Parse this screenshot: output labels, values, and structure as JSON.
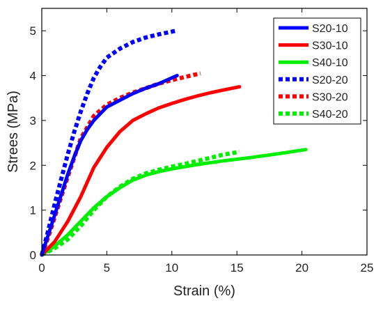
{
  "chart_data": {
    "type": "line",
    "title": "",
    "xlabel": "Strain (%)",
    "ylabel": "Strees (MPa)",
    "xlim": [
      0,
      25
    ],
    "ylim": [
      0,
      5.5
    ],
    "xticks": [
      0,
      5,
      10,
      15,
      20,
      25
    ],
    "yticks": [
      0,
      1,
      2,
      3,
      4,
      5
    ],
    "grid": false,
    "legend_position": "top-right",
    "series": [
      {
        "name": "S20-10",
        "color": "#0000ff",
        "style": "solid",
        "x": [
          0,
          0.5,
          1,
          1.5,
          2,
          2.5,
          3,
          3.5,
          4,
          5,
          6,
          7,
          8,
          9,
          10,
          10.4
        ],
        "y": [
          0,
          0.45,
          0.9,
          1.35,
          1.8,
          2.2,
          2.55,
          2.8,
          3.0,
          3.3,
          3.45,
          3.6,
          3.72,
          3.82,
          3.95,
          4.0
        ]
      },
      {
        "name": "S30-10",
        "color": "#ff0000",
        "style": "solid",
        "x": [
          0,
          1,
          2,
          3,
          4,
          5,
          6,
          7,
          8,
          9,
          10,
          11,
          12,
          13,
          14,
          15.2
        ],
        "y": [
          0,
          0.3,
          0.75,
          1.3,
          1.95,
          2.4,
          2.75,
          3.0,
          3.15,
          3.28,
          3.38,
          3.47,
          3.55,
          3.62,
          3.68,
          3.75
        ]
      },
      {
        "name": "S40-10",
        "color": "#00ee00",
        "style": "solid",
        "x": [
          0,
          1,
          2,
          3,
          4,
          5,
          6,
          7,
          8,
          9,
          10,
          12,
          14,
          16,
          18,
          20.3
        ],
        "y": [
          0,
          0.2,
          0.45,
          0.75,
          1.05,
          1.3,
          1.5,
          1.67,
          1.78,
          1.86,
          1.92,
          2.02,
          2.1,
          2.17,
          2.25,
          2.35
        ]
      },
      {
        "name": "S20-20",
        "color": "#0000ff",
        "style": "dotted",
        "x": [
          0,
          0.5,
          1,
          1.5,
          2,
          2.5,
          3,
          3.5,
          4,
          4.5,
          5,
          6,
          7,
          8,
          9,
          10.3
        ],
        "y": [
          0,
          0.55,
          1.15,
          1.7,
          2.25,
          2.75,
          3.2,
          3.6,
          3.95,
          4.2,
          4.4,
          4.6,
          4.75,
          4.85,
          4.92,
          5.0
        ]
      },
      {
        "name": "S30-20",
        "color": "#ff0000",
        "style": "dotted",
        "x": [
          0,
          0.5,
          1,
          1.5,
          2,
          3,
          4,
          5,
          6,
          7,
          8,
          9,
          10,
          11,
          12.2
        ],
        "y": [
          0,
          0.4,
          0.85,
          1.3,
          1.75,
          2.6,
          3.1,
          3.35,
          3.5,
          3.62,
          3.72,
          3.82,
          3.9,
          3.97,
          4.05
        ]
      },
      {
        "name": "S40-20",
        "color": "#00ee00",
        "style": "dotted",
        "x": [
          0,
          1,
          2,
          3,
          4,
          5,
          6,
          7,
          8,
          9,
          10,
          11,
          12,
          13,
          14,
          15.2
        ],
        "y": [
          0,
          0.15,
          0.35,
          0.65,
          1.0,
          1.3,
          1.52,
          1.7,
          1.82,
          1.9,
          1.97,
          2.03,
          2.1,
          2.17,
          2.24,
          2.3
        ]
      }
    ]
  }
}
